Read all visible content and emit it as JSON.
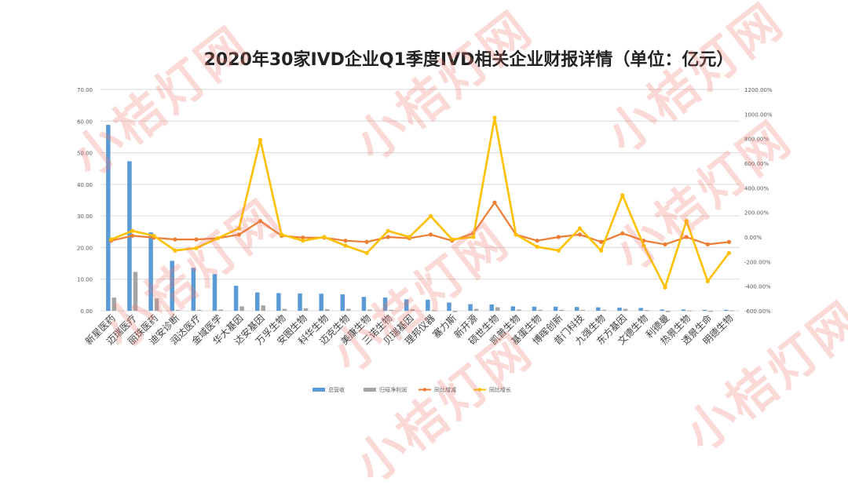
{
  "watermark": "小桔灯网",
  "colors": {
    "revenue": "#5b9bd5",
    "net_profit": "#a5a5a5",
    "yoy_change": "#ed7d31",
    "yoy_growth": "#ffc000",
    "grid": "#d9d9d9",
    "axis_text": "#595959"
  },
  "chart_data": {
    "type": "bar",
    "title": "2020年30家IVD企业Q1季度IVD相关企业财报详情（单位：亿元）",
    "categories": [
      "新星医药",
      "迈瑞医疗",
      "丽珠医药",
      "迪安诊断",
      "润达医疗",
      "金域医学",
      "华大基因",
      "达安基因",
      "万孚生物",
      "安图生物",
      "科华生物",
      "迈克生物",
      "美康生物",
      "三诺生物",
      "贝瑞基因",
      "理邦仪器",
      "塞力斯",
      "新开源",
      "硕世生物",
      "凯普生物",
      "基蛋生物",
      "博晖创新",
      "昔门科技",
      "九强生物",
      "东方基因",
      "文德生物",
      "利德曼",
      "热景生物",
      "透景生命",
      "明德生物"
    ],
    "y_left": {
      "min": 0,
      "max": 70,
      "ticks": [
        "0.00",
        "10.00",
        "20.00",
        "30.00",
        "40.00",
        "50.00",
        "60.00",
        "70.00"
      ]
    },
    "y_right": {
      "min": -600,
      "max": 1200,
      "ticks": [
        "-600.00%",
        "-400.00%",
        "-200.00%",
        "0.00%",
        "200.00%",
        "400.00%",
        "600.00%",
        "800.00%",
        "1000.00%",
        "1200.00%"
      ]
    },
    "series": [
      {
        "name": "总营收",
        "type": "bar",
        "axis": "left",
        "values": [
          58.8,
          47.3,
          24.8,
          15.8,
          13.6,
          11.6,
          7.9,
          5.8,
          5.6,
          5.5,
          5.4,
          5.2,
          4.4,
          4.2,
          3.6,
          3.5,
          2.6,
          2.1,
          2.0,
          1.4,
          1.3,
          1.3,
          1.2,
          1.1,
          1.0,
          0.9,
          0.4,
          0.4,
          0.3,
          0.3
        ]
      },
      {
        "name": "归母净利润",
        "type": "bar",
        "axis": "left",
        "values": [
          4.2,
          12.3,
          3.9,
          0.3,
          0.3,
          0.4,
          1.4,
          1.7,
          0.6,
          0.8,
          0.5,
          0.6,
          0.4,
          0.3,
          0.5,
          0.2,
          -0.4,
          0.6,
          1.1,
          0.4,
          0.3,
          0.3,
          0.3,
          0.3,
          0.6,
          0.2,
          -0.4,
          0.1,
          -0.3,
          0.1
        ]
      },
      {
        "name": "同比增减",
        "type": "line",
        "axis": "right",
        "values": [
          -30,
          10,
          -5,
          -20,
          -20,
          -10,
          20,
          130,
          10,
          -5,
          -5,
          -30,
          -40,
          0,
          -10,
          20,
          -30,
          30,
          280,
          20,
          -30,
          0,
          20,
          -40,
          30,
          -30,
          -60,
          0,
          -60,
          -40
        ]
      },
      {
        "name": "同比增长",
        "type": "line",
        "axis": "right",
        "values": [
          -20,
          50,
          10,
          -110,
          -90,
          -10,
          70,
          790,
          20,
          -30,
          0,
          -70,
          -130,
          50,
          0,
          170,
          -20,
          0,
          970,
          20,
          -80,
          -110,
          70,
          -110,
          340,
          -70,
          -410,
          130,
          -360,
          -130
        ]
      }
    ],
    "legend_position": "bottom",
    "grid": true
  }
}
